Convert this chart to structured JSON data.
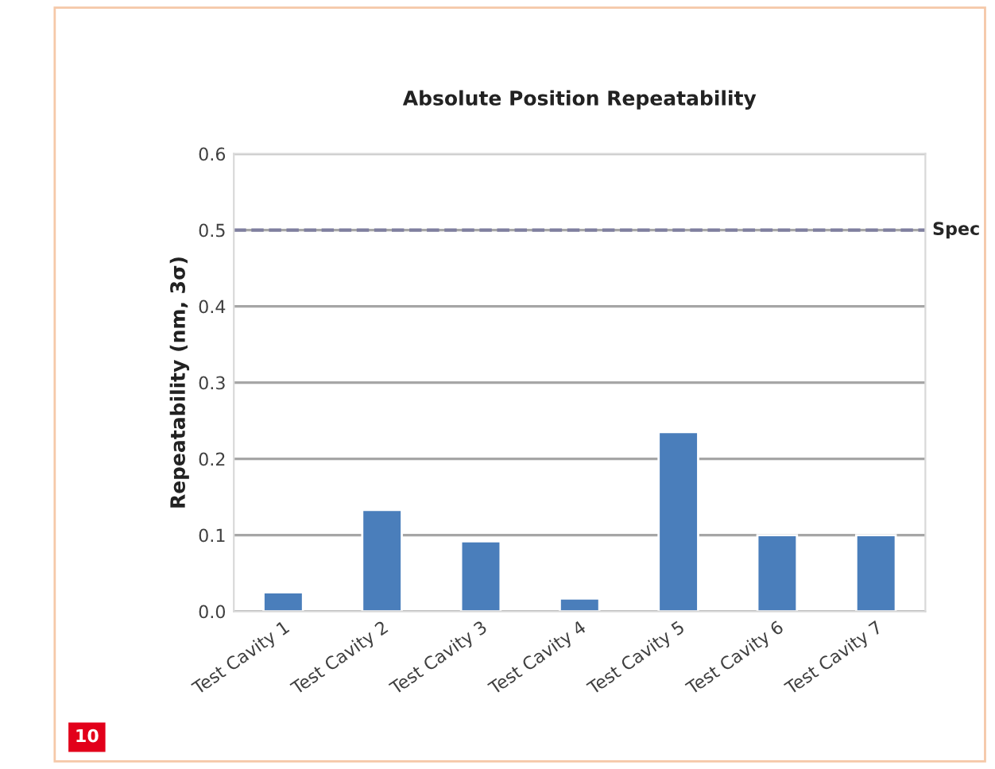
{
  "chart_data": {
    "type": "bar",
    "title": "Absolute Position Repeatability",
    "ylabel": "Repeatability (nm, 3σ)",
    "categories": [
      "Test Cavity 1",
      "Test Cavity 2",
      "Test Cavity 3",
      "Test Cavity 4",
      "Test Cavity 5",
      "Test Cavity 6",
      "Test Cavity 7"
    ],
    "values": [
      0.025,
      0.133,
      0.092,
      0.017,
      0.235,
      0.1,
      0.1
    ],
    "color": "#4a7ebb",
    "ylim": [
      0,
      0.6
    ],
    "yticks": [
      {
        "value": 0,
        "label": "0.0"
      },
      0.1,
      0.2,
      0.3,
      0.4,
      0.5,
      0.6
    ],
    "grid": "y",
    "ref_lines": [
      {
        "axis": "y",
        "value": 0.5,
        "label": "Spec",
        "color": "#7f7f9f",
        "line_style": "dashed"
      }
    ],
    "annotations": [
      "10"
    ]
  }
}
